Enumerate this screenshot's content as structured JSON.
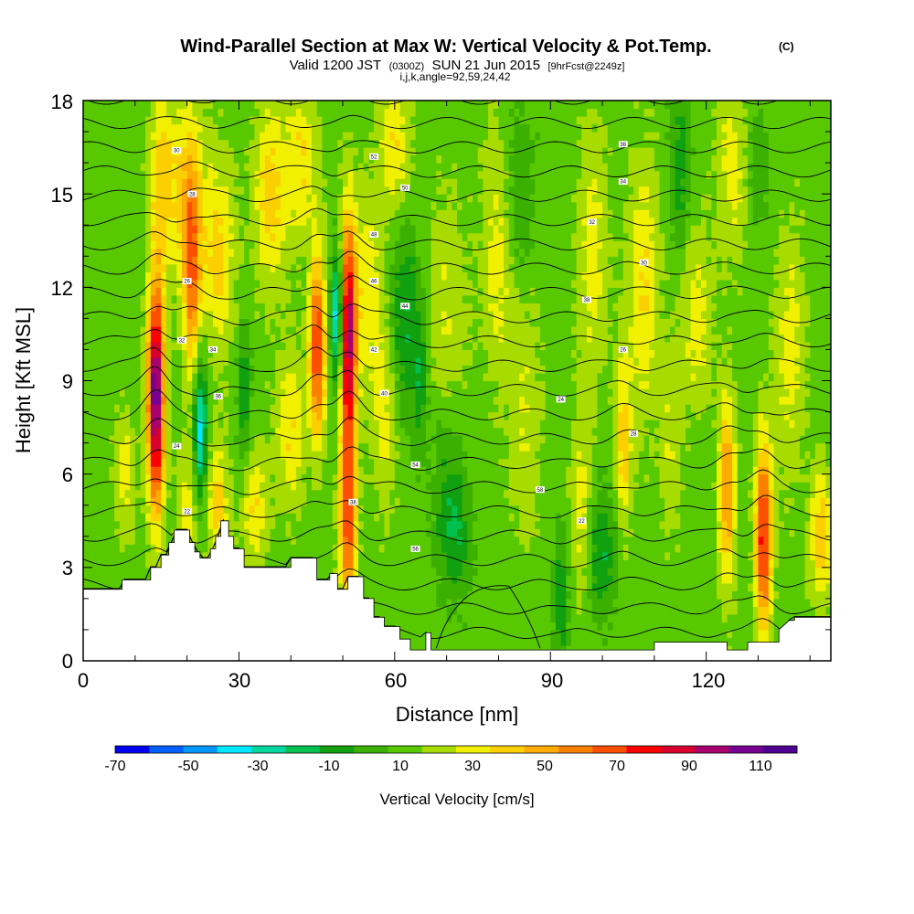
{
  "title": "Wind-Parallel Section at Max W: Vertical Velocity & Pot.Temp.",
  "title_mark": "(C)",
  "subtitle": {
    "part1": "Valid 1200 JST",
    "part2": "(0300Z)",
    "part3": "SUN 21 Jun 2015",
    "part4": "[9hrFcst@2249z]"
  },
  "subtitle2": "i,j,k,angle=92,59,24,42",
  "chart_data": {
    "type": "heatmap",
    "xlabel": "Distance [nm]",
    "ylabel": "Height [Kft MSL]",
    "xlim": [
      0,
      144
    ],
    "ylim": [
      0,
      18
    ],
    "xticks": [
      "0",
      "30",
      "60",
      "90",
      "120"
    ],
    "yticks": [
      "0",
      "3",
      "6",
      "9",
      "12",
      "15",
      "18"
    ],
    "colorbar": {
      "label": "Vertical Velocity [cm/s]",
      "tick_labels": [
        "-70",
        "-50",
        "-30",
        "-10",
        "10",
        "30",
        "50",
        "70",
        "90",
        "110"
      ],
      "bins": [
        -80,
        -70,
        -60,
        -50,
        -40,
        -30,
        -20,
        -10,
        0,
        10,
        20,
        30,
        40,
        50,
        60,
        70,
        80,
        90,
        100,
        110,
        120
      ],
      "colors": [
        "#0000f0",
        "#0060ff",
        "#0098ff",
        "#00e8ff",
        "#00d8a0",
        "#00c050",
        "#10a010",
        "#3cb000",
        "#58c800",
        "#a8dc00",
        "#f0f000",
        "#fcd000",
        "#fcac00",
        "#fc8000",
        "#fc5000",
        "#fc0000",
        "#d8002c",
        "#a8006c",
        "#780090",
        "#500090"
      ]
    },
    "updrafts": [
      {
        "x": 14,
        "z": 8.5,
        "w": 105
      },
      {
        "x": 21,
        "z": 12,
        "w": 45
      },
      {
        "x": 45,
        "z": 10,
        "w": 75
      },
      {
        "x": 51,
        "z": 10.5,
        "w": 95
      },
      {
        "x": 51,
        "z": 4.5,
        "w": 60
      },
      {
        "x": 104,
        "z": 7,
        "w": 30
      },
      {
        "x": 124,
        "z": 5.5,
        "w": 45
      },
      {
        "x": 131,
        "z": 4,
        "w": 70
      }
    ],
    "downdrafts": [
      {
        "x": 22.5,
        "z": 7.5,
        "w": -50
      },
      {
        "x": 49,
        "z": 11,
        "w": -60
      },
      {
        "x": 31,
        "z": 8.5,
        "w": -25
      },
      {
        "x": 65,
        "z": 9,
        "w": -20
      },
      {
        "x": 92,
        "z": 2,
        "w": -25
      }
    ],
    "theta_contour_labels": [
      "22",
      "24",
      "26",
      "28",
      "30",
      "32",
      "34",
      "36",
      "38",
      "40",
      "42",
      "44",
      "46",
      "48",
      "50",
      "52",
      "54",
      "56",
      "58"
    ]
  }
}
